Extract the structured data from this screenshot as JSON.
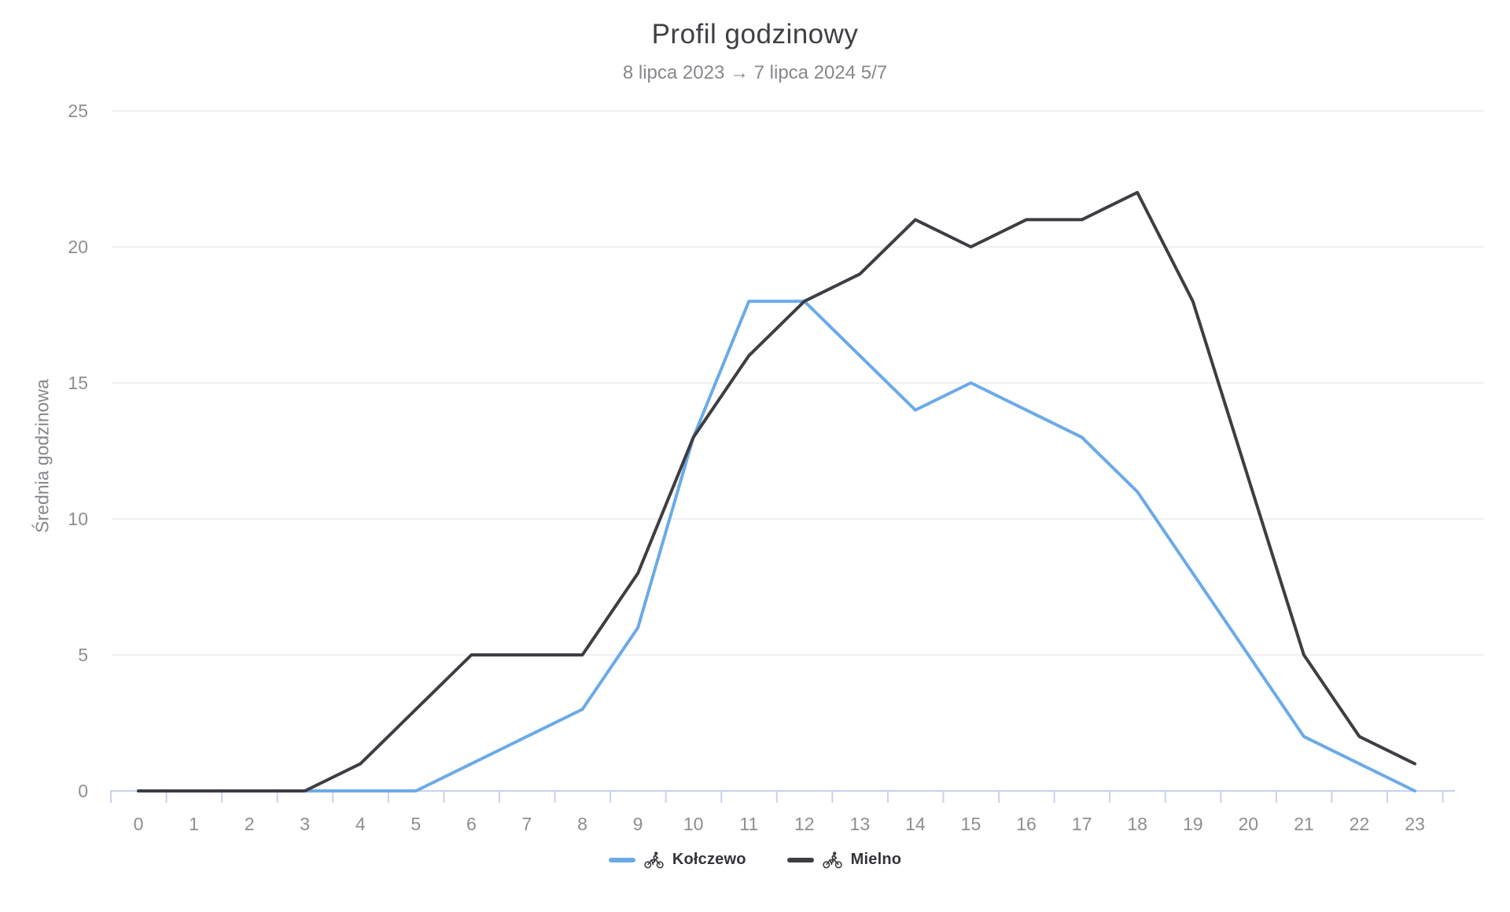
{
  "header": {
    "title": "Profil godzinowy",
    "subtitle": "8 lipca 2023 → 7 lipca 2024 5/7"
  },
  "colors": {
    "kolczewo_blue": "#6BAAE8",
    "mielno_dark": "#3D3D43",
    "axis_line": "#C9D1EE",
    "gridline": "#EAEAEC",
    "tick_text": "#8E8E93",
    "title_text": "#3F3F45",
    "subtitle_text": "#87878D",
    "legend_text": "#34343A"
  },
  "legend": {
    "items": [
      {
        "label": "Kołczewo",
        "icon": "cyclist-icon",
        "color": "#6BAAE8"
      },
      {
        "label": "Mielno",
        "icon": "cyclist-icon",
        "color": "#3D3D43"
      }
    ]
  },
  "chart_data": {
    "type": "line",
    "title": "Profil godzinowy",
    "subtitle": "8 lipca 2023 → 7 lipca 2024 5/7",
    "xlabel": "",
    "ylabel": "Średnia godzinowa",
    "x": [
      0,
      1,
      2,
      3,
      4,
      5,
      6,
      7,
      8,
      9,
      10,
      11,
      12,
      13,
      14,
      15,
      16,
      17,
      18,
      19,
      20,
      21,
      22,
      23
    ],
    "x_tick_labels": [
      "0",
      "1",
      "2",
      "3",
      "4",
      "5",
      "6",
      "7",
      "8",
      "9",
      "10",
      "11",
      "12",
      "13",
      "14",
      "15",
      "16",
      "17",
      "18",
      "19",
      "20",
      "21",
      "22",
      "23"
    ],
    "ylim": [
      0,
      25
    ],
    "yticks": [
      0,
      5,
      10,
      15,
      20,
      25
    ],
    "grid": true,
    "legend_position": "bottom",
    "series": [
      {
        "name": "Kołczewo",
        "color": "#6BAAE8",
        "values": [
          0,
          0,
          0,
          0,
          0,
          0,
          1,
          2,
          3,
          6,
          13,
          18,
          18,
          16,
          14,
          15,
          14,
          13,
          11,
          8,
          5,
          2,
          1,
          0
        ]
      },
      {
        "name": "Mielno",
        "color": "#3D3D43",
        "values": [
          0,
          0,
          0,
          0,
          1,
          3,
          5,
          5,
          5,
          8,
          13,
          16,
          18,
          19,
          21,
          20,
          21,
          21,
          22,
          18,
          11.5,
          5,
          2,
          1
        ]
      }
    ]
  }
}
